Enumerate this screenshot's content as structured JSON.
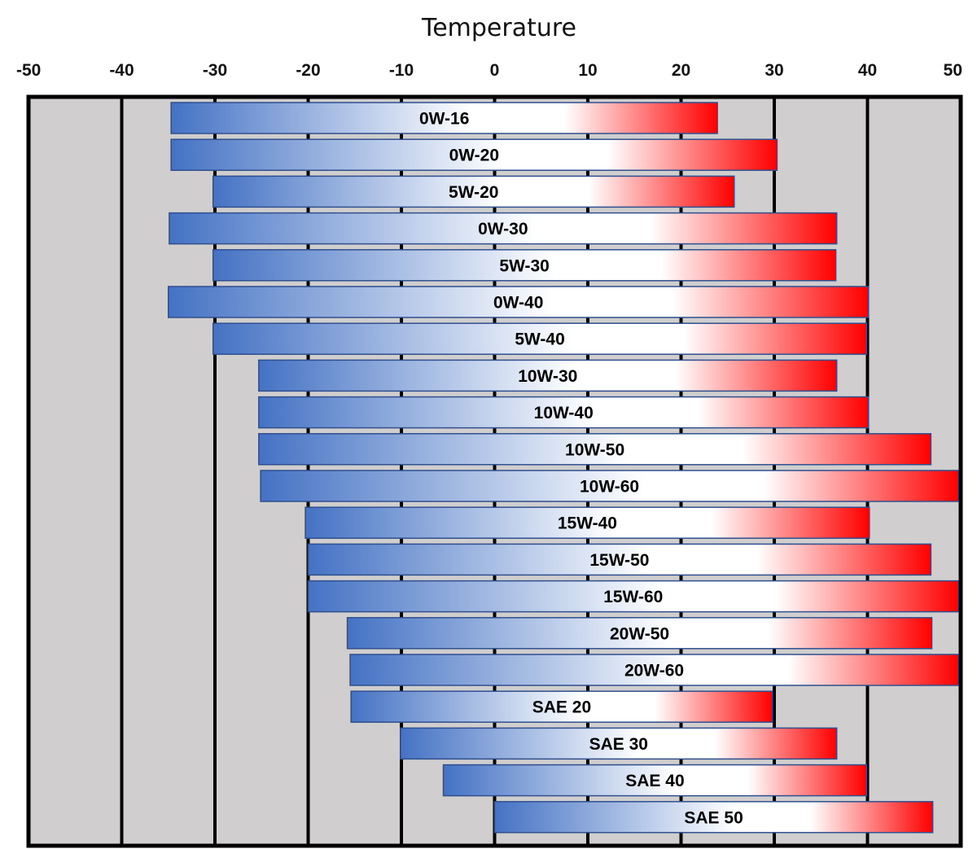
{
  "chart_data": {
    "type": "bar",
    "orientation": "horizontal",
    "title": "Temperature",
    "xlabel": "",
    "ylabel": "",
    "xlim": [
      -50,
      50
    ],
    "x_ticks": [
      -50,
      -40,
      -30,
      -20,
      -10,
      0,
      10,
      20,
      30,
      40,
      50
    ],
    "x_tick_labels": [
      "-50",
      "-40",
      "-30",
      "-20",
      "-10",
      "0",
      "10",
      "20",
      "30",
      "40",
      "50"
    ],
    "grid": true,
    "legend": "none",
    "categories": [
      "0W-16",
      "0W-20",
      "5W-20",
      "0W-30",
      "5W-30",
      "0W-40",
      "5W-40",
      "10W-30",
      "10W-40",
      "10W-50",
      "10W-60",
      "15W-40",
      "15W-50",
      "15W-60",
      "20W-50",
      "20W-60",
      "SAE 20",
      "SAE 30",
      "SAE 40",
      "SAE 50"
    ],
    "ranges": [
      [
        -34.7,
        23.9
      ],
      [
        -34.7,
        30.3
      ],
      [
        -30.2,
        25.7
      ],
      [
        -34.9,
        36.7
      ],
      [
        -30.2,
        36.6
      ],
      [
        -35.0,
        40.1
      ],
      [
        -30.2,
        39.9
      ],
      [
        -25.3,
        36.7
      ],
      [
        -25.3,
        40.1
      ],
      [
        -25.3,
        46.8
      ],
      [
        -25.1,
        50.3
      ],
      [
        -20.3,
        40.2
      ],
      [
        -20.0,
        46.8
      ],
      [
        -20.0,
        50.2
      ],
      [
        -15.8,
        46.9
      ],
      [
        -15.5,
        50.3
      ],
      [
        -15.4,
        29.8
      ],
      [
        -10.1,
        36.7
      ],
      [
        -5.5,
        39.9
      ],
      [
        0.0,
        47.0
      ]
    ],
    "colors": {
      "cold": "#4472c4",
      "mid": "#ffffff",
      "hot": "#ff0000",
      "bar_border": "#2f4f8f",
      "background": "#d0cece",
      "grid": "#000000"
    }
  }
}
